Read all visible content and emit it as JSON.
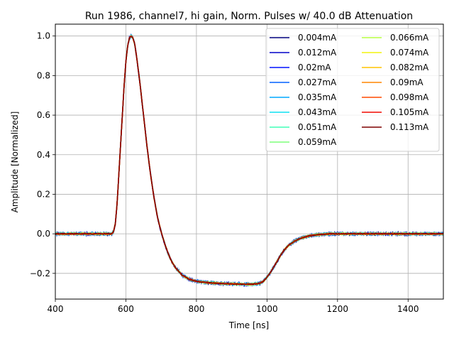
{
  "chart_data": {
    "type": "line",
    "title": "Run 1986, channel7, hi gain, Norm. Pulses w/ 40.0 dB Attenuation",
    "xlabel": "Time [ns]",
    "ylabel": "Amplitude [Normalized]",
    "xlim": [
      400,
      1500
    ],
    "ylim": [
      -0.33,
      1.06
    ],
    "xticks": [
      400,
      600,
      800,
      1000,
      1200,
      1400
    ],
    "yticks": [
      -0.2,
      0.0,
      0.2,
      0.4,
      0.6,
      0.8,
      1.0
    ],
    "xtick_labels": [
      "400",
      "600",
      "800",
      "1000",
      "1200",
      "1400"
    ],
    "ytick_labels": [
      "−0.2",
      "0.0",
      "0.2",
      "0.4",
      "0.6",
      "0.8",
      "1.0"
    ],
    "grid": true,
    "legend_position": "top-right",
    "legend_columns": 2,
    "pulse_shape": {
      "x": [
        400,
        560,
        565,
        570,
        575,
        580,
        585,
        590,
        595,
        600,
        605,
        610,
        615,
        620,
        625,
        630,
        640,
        650,
        660,
        670,
        680,
        690,
        700,
        710,
        720,
        730,
        740,
        750,
        760,
        780,
        800,
        820,
        840,
        860,
        880,
        900,
        920,
        940,
        960,
        980,
        990,
        1000,
        1010,
        1020,
        1030,
        1040,
        1050,
        1060,
        1080,
        1100,
        1120,
        1140,
        1160,
        1180,
        1200,
        1250,
        1300,
        1400,
        1500
      ],
      "y": [
        0.0,
        0.0,
        0.01,
        0.05,
        0.15,
        0.3,
        0.45,
        0.6,
        0.75,
        0.87,
        0.95,
        0.99,
        1.0,
        0.99,
        0.96,
        0.9,
        0.76,
        0.6,
        0.44,
        0.3,
        0.18,
        0.08,
        0.01,
        -0.05,
        -0.1,
        -0.14,
        -0.17,
        -0.19,
        -0.21,
        -0.23,
        -0.24,
        -0.245,
        -0.248,
        -0.25,
        -0.252,
        -0.253,
        -0.254,
        -0.255,
        -0.255,
        -0.25,
        -0.24,
        -0.22,
        -0.195,
        -0.165,
        -0.135,
        -0.105,
        -0.08,
        -0.06,
        -0.035,
        -0.02,
        -0.01,
        -0.005,
        -0.002,
        0.0,
        0.0,
        0.0,
        0.0,
        0.0,
        0.0
      ]
    },
    "series": [
      {
        "name": "0.004mA",
        "color": "#00007f"
      },
      {
        "name": "0.012mA",
        "color": "#0000c8"
      },
      {
        "name": "0.02mA",
        "color": "#0010ff"
      },
      {
        "name": "0.027mA",
        "color": "#0060ff"
      },
      {
        "name": "0.035mA",
        "color": "#00a8ff"
      },
      {
        "name": "0.043mA",
        "color": "#0de0f2"
      },
      {
        "name": "0.051mA",
        "color": "#40ffb7"
      },
      {
        "name": "0.059mA",
        "color": "#7dff7a"
      },
      {
        "name": "0.066mA",
        "color": "#b7ff40"
      },
      {
        "name": "0.074mA",
        "color": "#f2f40d"
      },
      {
        "name": "0.082mA",
        "color": "#ffc400"
      },
      {
        "name": "0.09mA",
        "color": "#ff8600"
      },
      {
        "name": "0.098mA",
        "color": "#ff4800"
      },
      {
        "name": "0.105mA",
        "color": "#f10800"
      },
      {
        "name": "0.113mA",
        "color": "#7f0000"
      }
    ]
  }
}
